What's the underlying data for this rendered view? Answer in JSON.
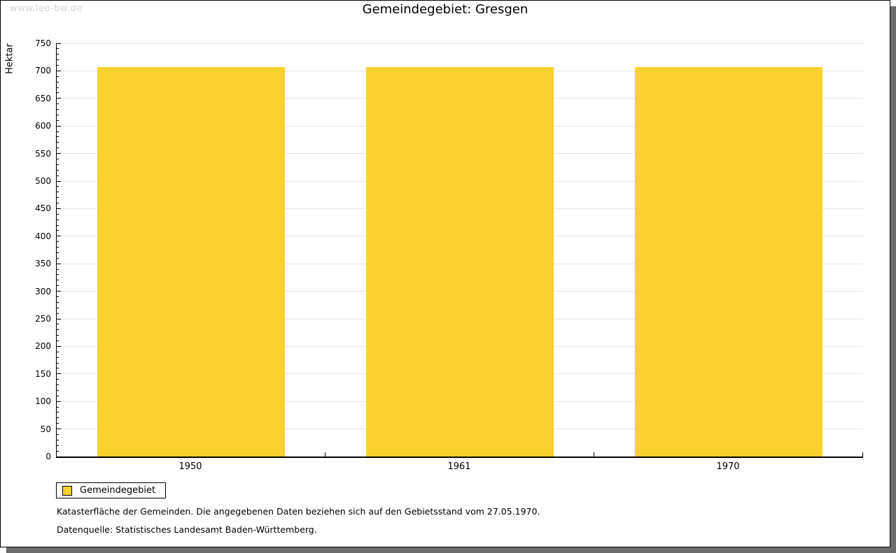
{
  "watermark": "www.leo-bw.de",
  "title": "Gemeindegebiet: Gresgen",
  "legend": {
    "items": [
      {
        "label": "Gemeindegebiet",
        "color": "#FBD22D"
      }
    ]
  },
  "notes": [
    "Katasterfläche der Gemeinden. Die angegebenen Daten beziehen sich auf den Gebietsstand vom 27.05.1970.",
    "Datenquelle: Statistisches Landesamt Baden-Württemberg."
  ],
  "colors": {
    "bar": "#FBD22D",
    "grid": "#e6e6e6",
    "axis": "#000000",
    "watermark": "#d4d4d4",
    "page_shadow": "#6b6b6b"
  },
  "chart_data": {
    "type": "bar",
    "categories": [
      "1950",
      "1961",
      "1970"
    ],
    "series": [
      {
        "name": "Gemeindegebiet",
        "values": [
          707,
          707,
          707
        ]
      }
    ],
    "title": "Gemeindegebiet: Gresgen",
    "xlabel": "",
    "ylabel": "Hektar",
    "ylim": [
      0,
      750
    ],
    "y_major_step": 50,
    "y_minor_step": 10,
    "grid": "horizontal-major-only",
    "legend_position": "bottom-left",
    "bar_color": "#FBD22D",
    "bar_width_fraction": 0.7
  }
}
